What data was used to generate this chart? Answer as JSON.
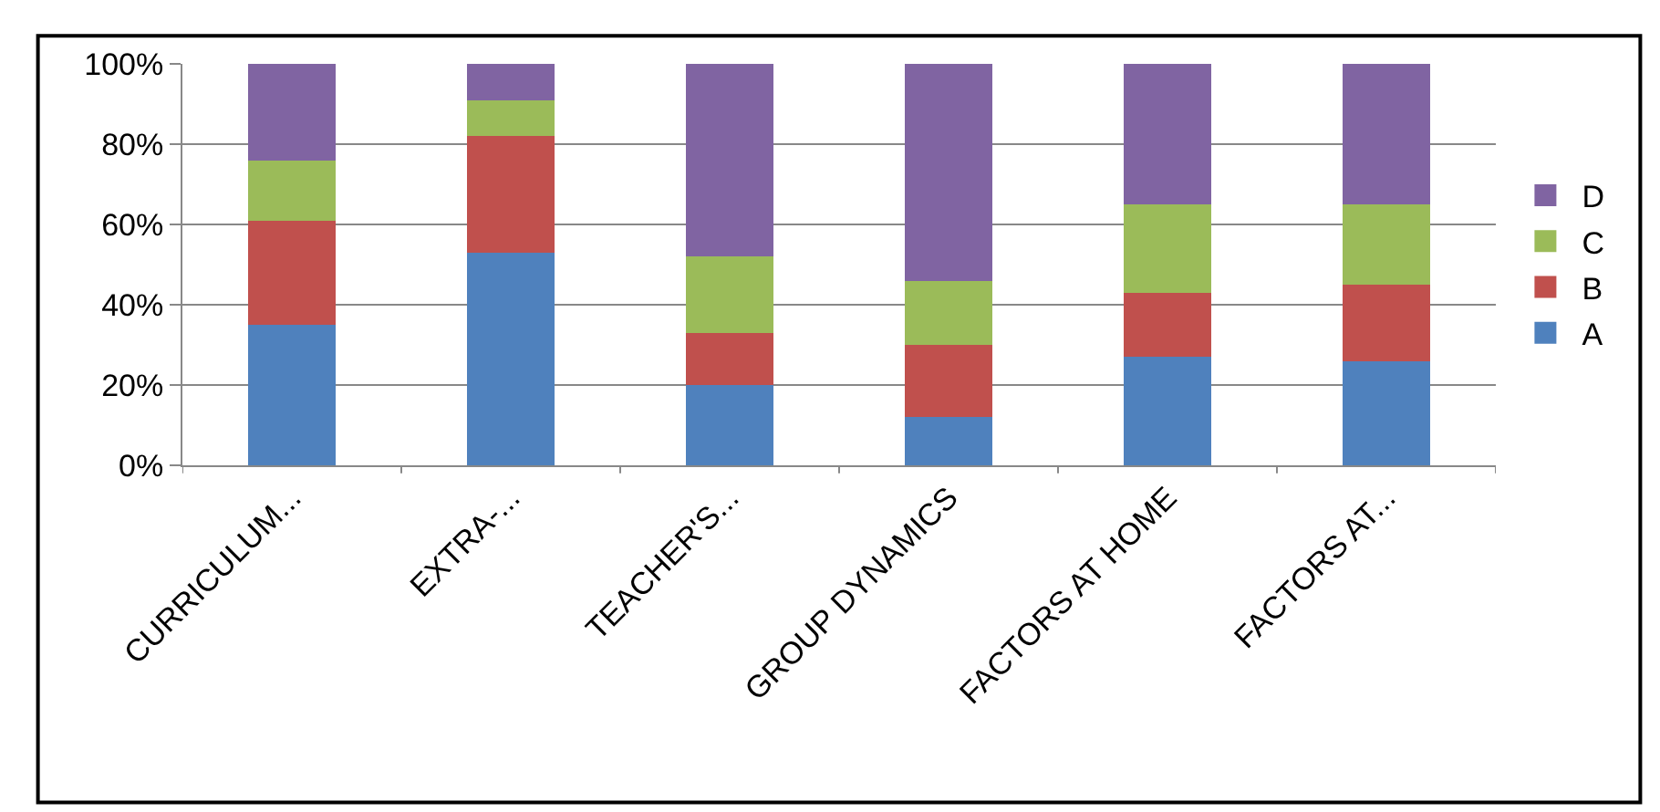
{
  "chart_data": {
    "type": "bar",
    "stacked": true,
    "categories": [
      "CURRICULUM...",
      "EXTRA-...",
      "TEACHER'S...",
      "GROUP DYNAMICS",
      "FACTORS AT HOME",
      "FACTORS AT..."
    ],
    "series": [
      {
        "name": "A",
        "color": "#4f81bd",
        "values": [
          35,
          53,
          20,
          12,
          27,
          26
        ]
      },
      {
        "name": "B",
        "color": "#c0504d",
        "values": [
          26,
          29,
          13,
          18,
          16,
          19
        ]
      },
      {
        "name": "C",
        "color": "#9bbb59",
        "values": [
          15,
          9,
          19,
          16,
          22,
          20
        ]
      },
      {
        "name": "D",
        "color": "#8064a2",
        "values": [
          24,
          9,
          48,
          54,
          35,
          35
        ]
      }
    ],
    "ylim": [
      0,
      100
    ],
    "yticks": [
      {
        "value": 0,
        "label": "0%"
      },
      {
        "value": 20,
        "label": "20%"
      },
      {
        "value": 40,
        "label": "40%"
      },
      {
        "value": 60,
        "label": "60%"
      },
      {
        "value": 80,
        "label": "80%"
      },
      {
        "value": 100,
        "label": "100%"
      }
    ],
    "grid": "y",
    "legend": "right"
  }
}
